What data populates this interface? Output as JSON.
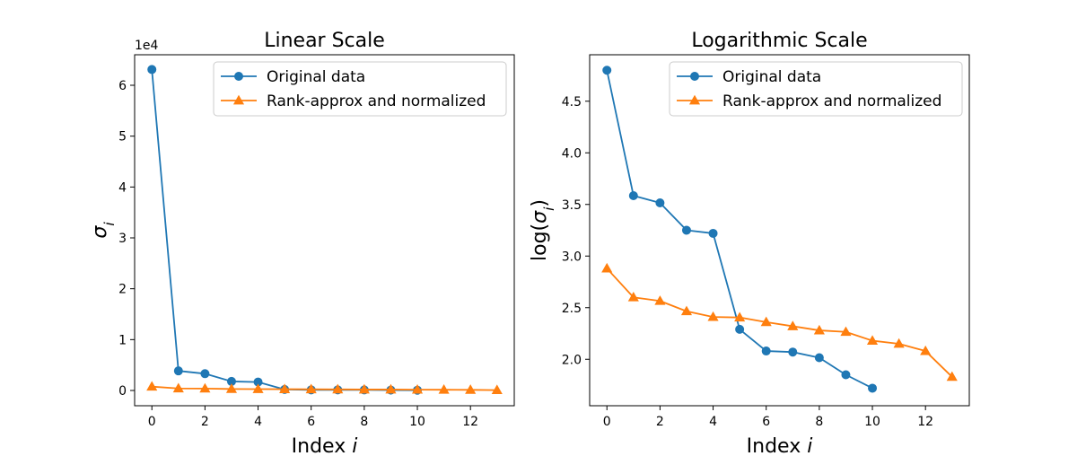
{
  "chart_data": [
    {
      "type": "line",
      "title": "Linear Scale",
      "xlabel": "Index i",
      "ylabel": "σ_i",
      "offset_text": "1e4",
      "xlim": [
        -0.65,
        13.65
      ],
      "ylim": [
        -0.3,
        6.6
      ],
      "yscale_multiplier": 10000,
      "xticks": [
        0,
        2,
        4,
        6,
        8,
        10,
        12
      ],
      "yticks": [
        0,
        1,
        2,
        3,
        4,
        5,
        6
      ],
      "legend": {
        "position": "top-right"
      },
      "series": [
        {
          "name": "Original data",
          "color": "#1f77b4",
          "marker": "circle",
          "x": [
            0,
            1,
            2,
            3,
            4,
            5,
            6,
            7,
            8,
            9,
            10
          ],
          "y": [
            6.31,
            0.385,
            0.33,
            0.178,
            0.166,
            0.0195,
            0.012,
            0.0117,
            0.0104,
            0.0071,
            0.0053
          ]
        },
        {
          "name": "Rank-approx and normalized",
          "color": "#ff7f0e",
          "marker": "triangle",
          "x": [
            0,
            1,
            2,
            3,
            4,
            5,
            6,
            7,
            8,
            9,
            10,
            11,
            12,
            13
          ],
          "y": [
            0.076,
            0.04,
            0.037,
            0.029,
            0.026,
            0.025,
            0.023,
            0.021,
            0.019,
            0.0185,
            0.015,
            0.014,
            0.012,
            0.0068
          ]
        }
      ]
    },
    {
      "type": "line",
      "title": "Logarithmic Scale",
      "xlabel": "Index i",
      "ylabel": "log(σ_i)",
      "xlim": [
        -0.65,
        13.65
      ],
      "ylim": [
        1.55,
        4.95
      ],
      "xticks": [
        0,
        2,
        4,
        6,
        8,
        10,
        12
      ],
      "yticks": [
        2.0,
        2.5,
        3.0,
        3.5,
        4.0,
        4.5
      ],
      "legend": {
        "position": "top-right"
      },
      "series": [
        {
          "name": "Original data",
          "color": "#1f77b4",
          "marker": "circle",
          "x": [
            0,
            1,
            2,
            3,
            4,
            5,
            6,
            7,
            8,
            9,
            10
          ],
          "y": [
            4.8,
            3.585,
            3.515,
            3.25,
            3.22,
            2.29,
            2.08,
            2.07,
            2.015,
            1.85,
            1.72
          ]
        },
        {
          "name": "Rank-approx and normalized",
          "color": "#ff7f0e",
          "marker": "triangle",
          "x": [
            0,
            1,
            2,
            3,
            4,
            5,
            6,
            7,
            8,
            9,
            10,
            11,
            12,
            13
          ],
          "y": [
            2.88,
            2.6,
            2.565,
            2.465,
            2.41,
            2.405,
            2.36,
            2.32,
            2.28,
            2.265,
            2.18,
            2.15,
            2.08,
            1.83
          ]
        }
      ]
    }
  ]
}
